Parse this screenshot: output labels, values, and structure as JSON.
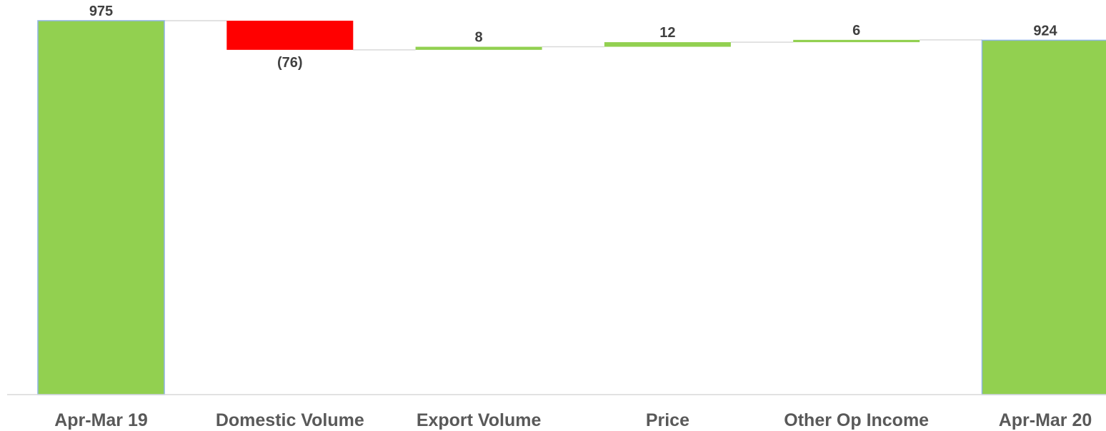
{
  "chart_data": {
    "type": "waterfall",
    "categories": [
      "Apr-Mar 19",
      "Domestic Volume",
      "Export Volume",
      "Price",
      "Other Op Income",
      "Apr-Mar 20"
    ],
    "values": [
      975,
      -76,
      8,
      12,
      6,
      924
    ],
    "kinds": [
      "total",
      "delta",
      "delta",
      "delta",
      "delta",
      "total"
    ],
    "data_labels": [
      "975",
      "(76)",
      "8",
      "12",
      "6",
      "924"
    ],
    "ylim": [
      0,
      975
    ],
    "grid": false,
    "legend": "none",
    "colors": {
      "increase": "#92d050",
      "decrease": "#ff0000",
      "total": "#92d050",
      "total_border": "#8db4e2",
      "connector": "#d9d9d9",
      "axis": "#d9d9d9"
    }
  }
}
